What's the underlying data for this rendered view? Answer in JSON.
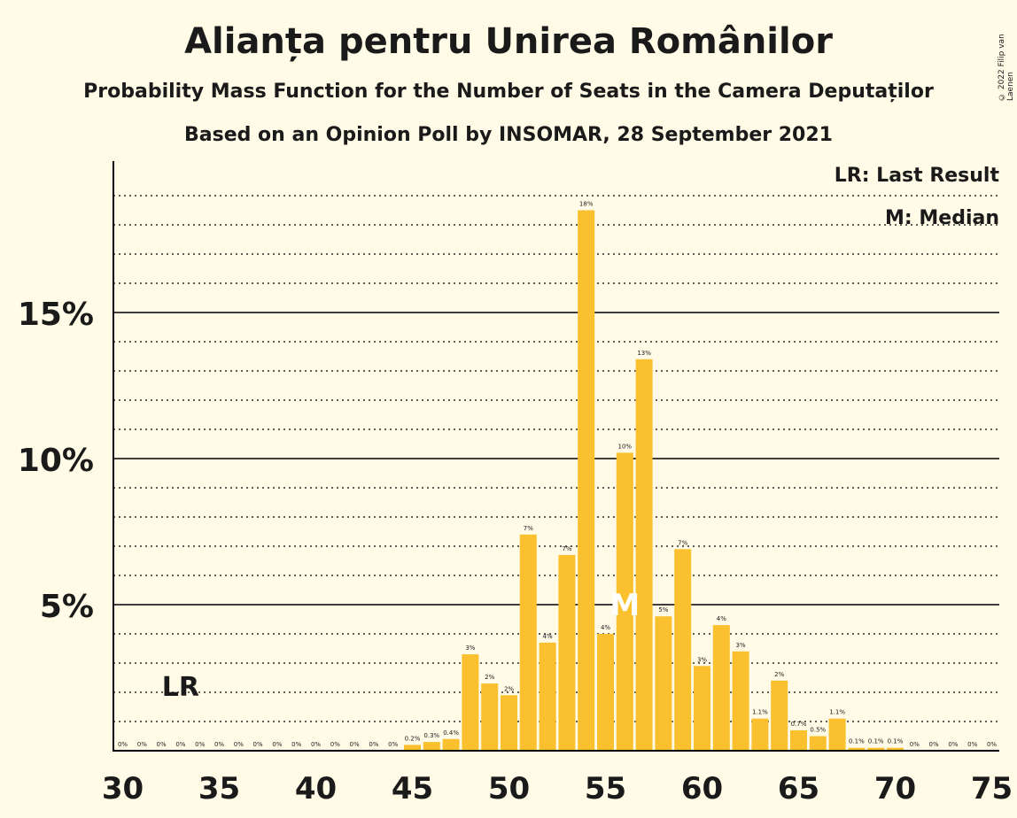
{
  "header": {
    "title": "Alianța pentru Unirea Românilor",
    "subtitle": "Probability Mass Function for the Number of Seats in the Camera Deputaților",
    "subtitle2": "Based on an Opinion Poll by INSOMAR, 28 September 2021",
    "copyright": "© 2022 Filip van Laenen"
  },
  "legend": {
    "last_result": "LR: Last Result",
    "median": "M: Median"
  },
  "colors": {
    "bar": "#FBC02D",
    "background": "#FFFBE6",
    "axis": "#000000"
  },
  "chart_data": {
    "type": "bar",
    "x": [
      30,
      31,
      32,
      33,
      34,
      35,
      36,
      37,
      38,
      39,
      40,
      41,
      42,
      43,
      44,
      45,
      46,
      47,
      48,
      49,
      50,
      51,
      52,
      53,
      54,
      55,
      56,
      57,
      58,
      59,
      60,
      61,
      62,
      63,
      64,
      65,
      66,
      67,
      68,
      69,
      70,
      71,
      72,
      73,
      74,
      75
    ],
    "values": [
      0,
      0,
      0,
      0,
      0,
      0,
      0,
      0,
      0,
      0,
      0,
      0,
      0,
      0,
      0,
      0.2,
      0.3,
      0.4,
      3.3,
      2.3,
      1.9,
      7.4,
      3.7,
      6.7,
      18.5,
      4.0,
      10.2,
      13.4,
      4.6,
      6.9,
      2.9,
      4.3,
      3.4,
      1.1,
      2.4,
      0.7,
      0.5,
      1.1,
      0.1,
      0.1,
      0.1,
      0,
      0,
      0,
      0,
      0
    ],
    "data_labels": [
      "0%",
      "0%",
      "0%",
      "0%",
      "0%",
      "0%",
      "0%",
      "0%",
      "0%",
      "0%",
      "0%",
      "0%",
      "0%",
      "0%",
      "0%",
      "0.2%",
      "0.3%",
      "0.4%",
      "3%",
      "2%",
      "2%",
      "7%",
      "4%",
      "7%",
      "18%",
      "4%",
      "10%",
      "13%",
      "5%",
      "7%",
      "3%",
      "4%",
      "3%",
      "1.1%",
      "2%",
      "0.7%",
      "0.5%",
      "1.1%",
      "0.1%",
      "0.1%",
      "0.1%",
      "0%",
      "0%",
      "0%",
      "0%",
      "0%"
    ],
    "xticks": [
      30,
      35,
      40,
      45,
      50,
      55,
      60,
      65,
      70,
      75
    ],
    "ytick_values": [
      5,
      10,
      15
    ],
    "ytick_labels": [
      "5%",
      "10%",
      "15%"
    ],
    "ylim": [
      0,
      20
    ],
    "minor_grid_step": 1,
    "last_result_seat": 33,
    "last_result_label": "LR",
    "median_seat": 56,
    "median_label": "M"
  }
}
